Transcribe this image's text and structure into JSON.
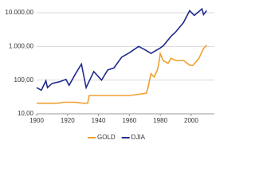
{
  "chart_data": {
    "type": "line",
    "log_y": true,
    "grid": true,
    "legend": "bottom",
    "xlim": [
      1900,
      2015
    ],
    "xticks": [
      1900,
      1920,
      1940,
      1960,
      1980,
      2000
    ],
    "ylim": [
      10,
      10000
    ],
    "yticks": [
      {
        "value": 10,
        "label": "10,00"
      },
      {
        "value": 100,
        "label": "100,00"
      },
      {
        "value": 1000,
        "label": "1.000,00"
      },
      {
        "value": 10000,
        "label": "10.000,00"
      }
    ],
    "series": [
      {
        "name": "GOLD",
        "color": "#f0a030",
        "x": [
          1900,
          1914,
          1917,
          1925,
          1930,
          1933,
          1934,
          1950,
          1960,
          1968,
          1971,
          1972,
          1973,
          1974,
          1976,
          1978,
          1979,
          1980,
          1982,
          1985,
          1987,
          1990,
          1995,
          1999,
          2001,
          2005,
          2008,
          2010
        ],
        "values": [
          20.67,
          20.67,
          22,
          22,
          20.67,
          20.67,
          35,
          35,
          35,
          39,
          41,
          58,
          97,
          154,
          125,
          193,
          307,
          612,
          376,
          317,
          446,
          383,
          384,
          279,
          271,
          444,
          872,
          1100
        ]
      },
      {
        "name": "DJIA",
        "color": "#1f2a8c",
        "x": [
          1900,
          1903,
          1906,
          1907,
          1910,
          1915,
          1919,
          1921,
          1925,
          1929,
          1932,
          1937,
          1942,
          1946,
          1950,
          1955,
          1960,
          1966,
          1970,
          1974,
          1980,
          1982,
          1987,
          1990,
          1995,
          1999,
          2002,
          2007,
          2008,
          2010
        ],
        "values": [
          60,
          50,
          95,
          60,
          80,
          90,
          105,
          70,
          150,
          300,
          60,
          180,
          100,
          200,
          230,
          480,
          650,
          1000,
          800,
          620,
          900,
          1050,
          2000,
          2700,
          5100,
          11500,
          8300,
          13000,
          8800,
          11500
        ]
      }
    ]
  }
}
